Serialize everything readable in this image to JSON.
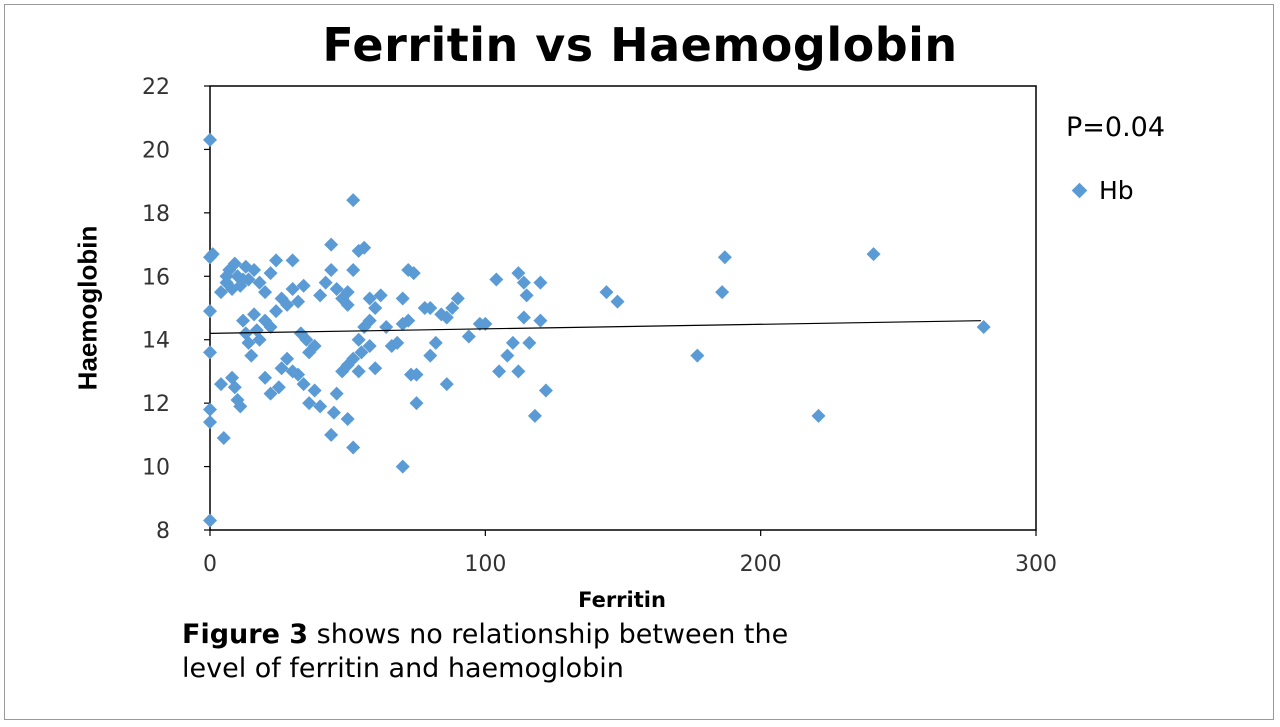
{
  "figure": {
    "caption_bold": "Figure 3",
    "caption_line1": " shows no relationship between the",
    "caption_line2": "level of ferritin and haemoglobin",
    "annotation": "P=0.04"
  },
  "chart_data": {
    "type": "scatter",
    "title": "Ferritin vs Haemoglobin",
    "xlabel": "Ferritin",
    "ylabel": "Haemoglobin",
    "xlim": [
      0,
      300
    ],
    "ylim": [
      8,
      22
    ],
    "x_ticks": [
      0,
      100,
      200,
      300
    ],
    "y_ticks": [
      8,
      10,
      12,
      14,
      16,
      18,
      20,
      22
    ],
    "grid": false,
    "legend": "right",
    "colors": {
      "marker": "#5b9bd5",
      "trendline": "#000000",
      "axis": "#000000"
    },
    "trendline": {
      "type": "linear",
      "points": [
        [
          0,
          14.2
        ],
        [
          280,
          14.6
        ]
      ]
    },
    "series": [
      {
        "name": "Hb",
        "points": [
          [
            0,
            20.3
          ],
          [
            0,
            8.3
          ],
          [
            0,
            16.6
          ],
          [
            1,
            16.7
          ],
          [
            0,
            14.9
          ],
          [
            0,
            13.6
          ],
          [
            0,
            11.8
          ],
          [
            0,
            11.4
          ],
          [
            4,
            12.6
          ],
          [
            5,
            10.9
          ],
          [
            6,
            15.8
          ],
          [
            7,
            16.2
          ],
          [
            8,
            15.6
          ],
          [
            9,
            16.4
          ],
          [
            10,
            16.0
          ],
          [
            11,
            15.7
          ],
          [
            12,
            15.9
          ],
          [
            13,
            16.3
          ],
          [
            4,
            15.5
          ],
          [
            6,
            16.0
          ],
          [
            14,
            15.9
          ],
          [
            8,
            12.8
          ],
          [
            9,
            12.5
          ],
          [
            10,
            12.1
          ],
          [
            11,
            11.9
          ],
          [
            12,
            14.6
          ],
          [
            13,
            14.2
          ],
          [
            14,
            13.9
          ],
          [
            15,
            13.5
          ],
          [
            16,
            14.8
          ],
          [
            17,
            14.3
          ],
          [
            18,
            14.0
          ],
          [
            16,
            16.2
          ],
          [
            18,
            15.8
          ],
          [
            20,
            15.5
          ],
          [
            22,
            16.1
          ],
          [
            24,
            16.5
          ],
          [
            20,
            14.6
          ],
          [
            22,
            14.4
          ],
          [
            24,
            14.9
          ],
          [
            20,
            12.8
          ],
          [
            22,
            12.3
          ],
          [
            25,
            12.5
          ],
          [
            26,
            13.1
          ],
          [
            28,
            13.4
          ],
          [
            30,
            13.0
          ],
          [
            32,
            12.9
          ],
          [
            34,
            12.6
          ],
          [
            26,
            15.3
          ],
          [
            28,
            15.1
          ],
          [
            30,
            15.6
          ],
          [
            32,
            15.2
          ],
          [
            34,
            15.7
          ],
          [
            30,
            16.5
          ],
          [
            33,
            14.2
          ],
          [
            35,
            14.0
          ],
          [
            36,
            13.6
          ],
          [
            38,
            13.8
          ],
          [
            36,
            12.0
          ],
          [
            38,
            12.4
          ],
          [
            40,
            11.9
          ],
          [
            40,
            15.4
          ],
          [
            42,
            15.8
          ],
          [
            44,
            17.0
          ],
          [
            44,
            16.2
          ],
          [
            46,
            15.6
          ],
          [
            48,
            15.3
          ],
          [
            50,
            15.5
          ],
          [
            50,
            15.1
          ],
          [
            52,
            16.2
          ],
          [
            54,
            16.8
          ],
          [
            56,
            16.9
          ],
          [
            52,
            18.4
          ],
          [
            44,
            11.0
          ],
          [
            45,
            11.7
          ],
          [
            46,
            12.3
          ],
          [
            48,
            13.0
          ],
          [
            50,
            13.2
          ],
          [
            52,
            13.4
          ],
          [
            54,
            13.0
          ],
          [
            50,
            11.5
          ],
          [
            52,
            10.6
          ],
          [
            54,
            14.0
          ],
          [
            56,
            14.4
          ],
          [
            58,
            14.6
          ],
          [
            55,
            13.6
          ],
          [
            58,
            13.8
          ],
          [
            60,
            13.1
          ],
          [
            58,
            15.3
          ],
          [
            60,
            15.0
          ],
          [
            62,
            15.4
          ],
          [
            64,
            14.4
          ],
          [
            66,
            13.8
          ],
          [
            68,
            13.9
          ],
          [
            70,
            14.5
          ],
          [
            72,
            14.6
          ],
          [
            70,
            10.0
          ],
          [
            70,
            15.3
          ],
          [
            72,
            16.2
          ],
          [
            74,
            16.1
          ],
          [
            73,
            12.9
          ],
          [
            75,
            12.9
          ],
          [
            75,
            12.0
          ],
          [
            78,
            15.0
          ],
          [
            80,
            15.0
          ],
          [
            82,
            13.9
          ],
          [
            80,
            13.5
          ],
          [
            84,
            14.8
          ],
          [
            86,
            14.7
          ],
          [
            88,
            15.0
          ],
          [
            90,
            15.3
          ],
          [
            86,
            12.6
          ],
          [
            94,
            14.1
          ],
          [
            98,
            14.5
          ],
          [
            100,
            14.5
          ],
          [
            104,
            15.9
          ],
          [
            105,
            13.0
          ],
          [
            108,
            13.5
          ],
          [
            110,
            13.9
          ],
          [
            112,
            16.1
          ],
          [
            114,
            15.8
          ],
          [
            115,
            15.4
          ],
          [
            112,
            13.0
          ],
          [
            114,
            14.7
          ],
          [
            116,
            13.9
          ],
          [
            118,
            11.6
          ],
          [
            120,
            14.6
          ],
          [
            120,
            15.8
          ],
          [
            122,
            12.4
          ],
          [
            144,
            15.5
          ],
          [
            148,
            15.2
          ],
          [
            177,
            13.5
          ],
          [
            186,
            15.5
          ],
          [
            187,
            16.6
          ],
          [
            221,
            11.6
          ],
          [
            241,
            16.7
          ],
          [
            281,
            14.4
          ]
        ]
      }
    ]
  }
}
